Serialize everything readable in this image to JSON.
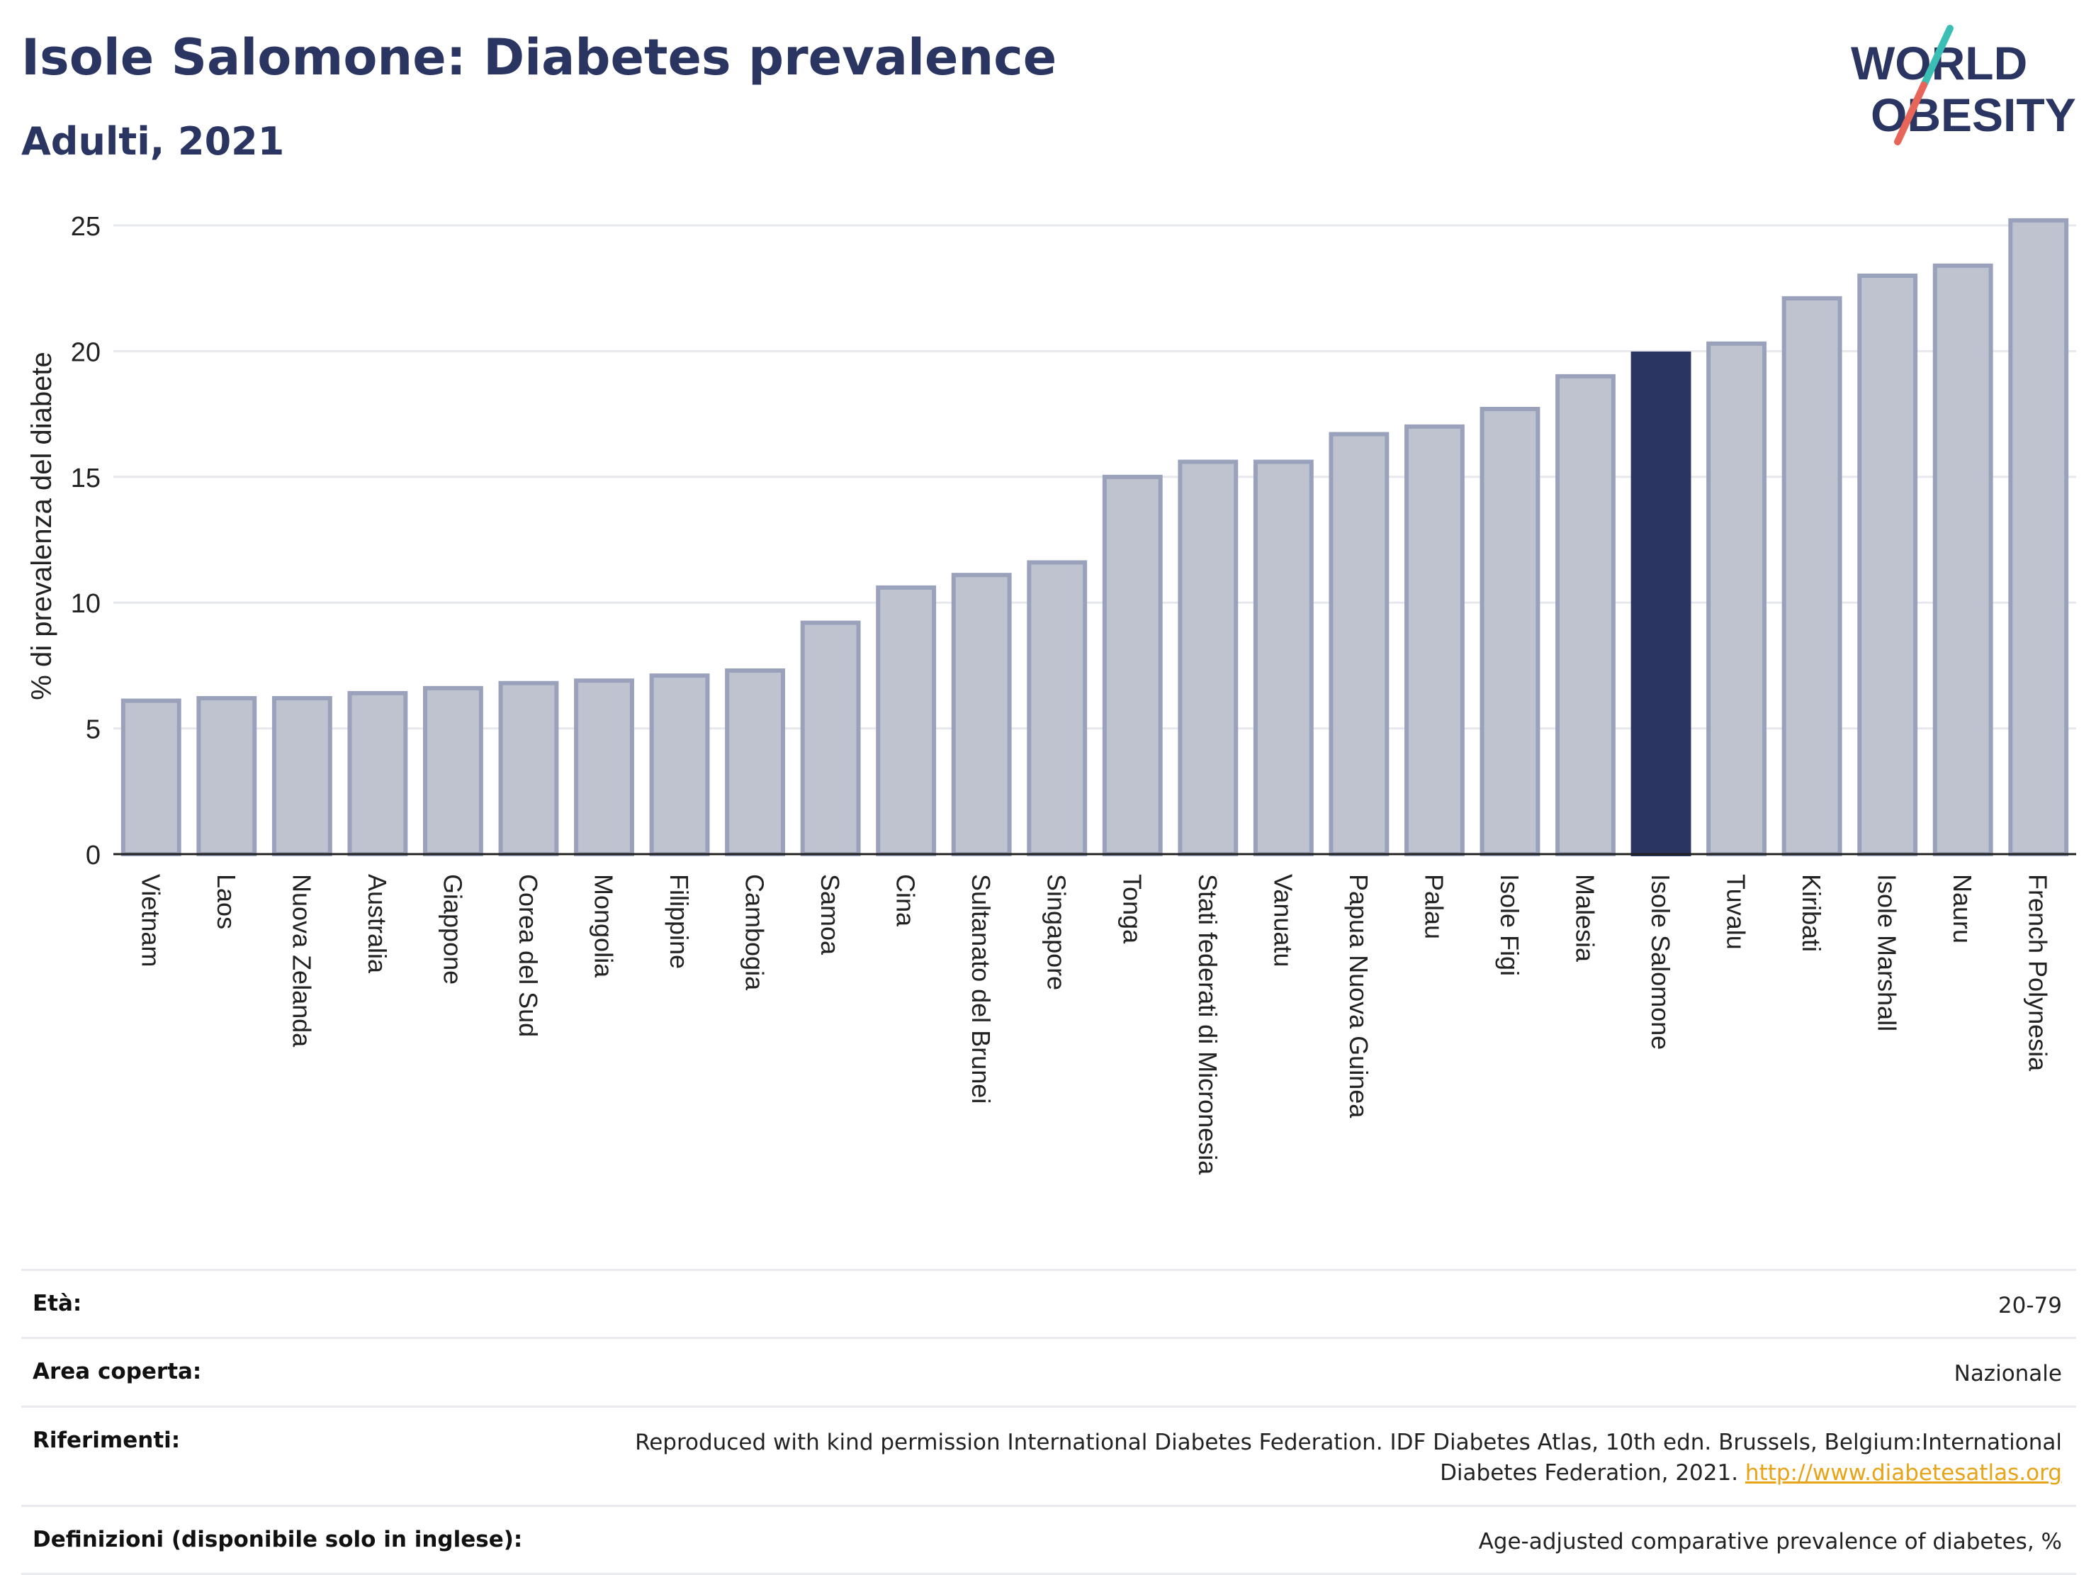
{
  "header": {
    "title": "Isole Salomone: Diabetes prevalence",
    "subtitle": "Adulti, 2021"
  },
  "logo": {
    "line1": "WORLD",
    "line2": "OBESITY",
    "icon": "slash-logo-icon",
    "colors": {
      "text": "#2b3561",
      "slash_top": "#3bbfb4",
      "slash_bottom": "#e8655a"
    }
  },
  "colors": {
    "bar": "#bfc3d0",
    "bar_stroke": "#9aa1bb",
    "highlight": "#2b3561",
    "grid": "#e6e8ee",
    "axis": "#222222",
    "link": "#e8a317"
  },
  "chart_data": {
    "type": "bar",
    "ylabel": "% di prevalenza del diabete",
    "xlabel": "",
    "ylim": [
      0,
      26
    ],
    "yticks": [
      0,
      5,
      10,
      15,
      20,
      25
    ],
    "grid": true,
    "highlight": "Isole Salomone",
    "categories": [
      "Vietnam",
      "Laos",
      "Nuova Zelanda",
      "Australia",
      "Giappone",
      "Corea del Sud",
      "Mongolia",
      "Filippine",
      "Cambogia",
      "Samoa",
      "Cina",
      "Sultanato del Brunei",
      "Singapore",
      "Tonga",
      "Stati federati di Micronesia",
      "Vanuatu",
      "Papua Nuova Guinea",
      "Palau",
      "Isole Figi",
      "Malesia",
      "Isole Salomone",
      "Tuvalu",
      "Kiribati",
      "Isole Marshall",
      "Nauru",
      "French Polynesia"
    ],
    "values": [
      6.1,
      6.2,
      6.2,
      6.4,
      6.6,
      6.8,
      6.9,
      7.1,
      7.3,
      9.2,
      10.6,
      11.1,
      11.6,
      15.0,
      15.6,
      15.6,
      16.7,
      17.0,
      17.7,
      19.0,
      19.9,
      20.3,
      22.1,
      23.0,
      23.4,
      25.2
    ]
  },
  "meta": {
    "age_label": "Età:",
    "age_value": "20-79",
    "area_label": "Area coperta:",
    "area_value": "Nazionale",
    "refs_label": "Riferimenti:",
    "refs_value": "Reproduced with kind permission International Diabetes Federation.  IDF Diabetes Atlas, 10th edn. Brussels, Belgium:International Diabetes Federation, 2021.",
    "refs_link": "http://www.diabetesatlas.org",
    "defs_label": "Definizioni (disponibile solo in inglese):",
    "defs_value": "Age-adjusted comparative prevalence of diabetes, %"
  }
}
